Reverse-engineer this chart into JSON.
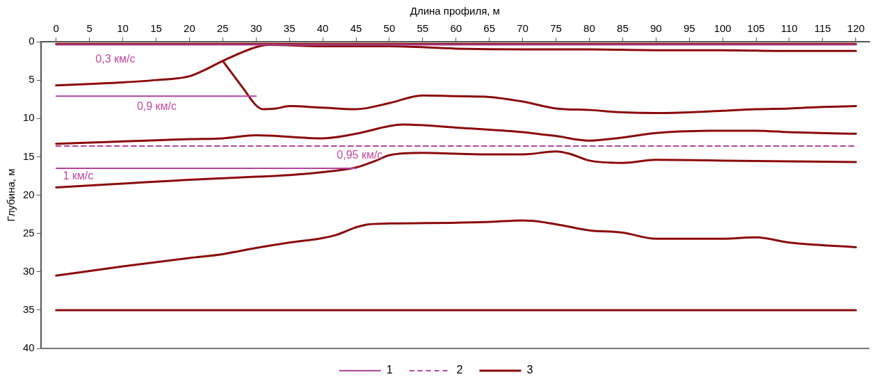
{
  "chart_data": {
    "type": "line",
    "xlabel": "Длина профиля, м",
    "ylabel": "Глубина, м",
    "xlim": [
      -2.3,
      122
    ],
    "xticks": [
      0,
      5,
      10,
      15,
      20,
      25,
      30,
      35,
      40,
      45,
      50,
      55,
      60,
      65,
      70,
      75,
      80,
      85,
      90,
      95,
      100,
      105,
      110,
      115,
      120
    ],
    "ylim": [
      40,
      0
    ],
    "yticks": [
      0,
      5,
      10,
      15,
      20,
      25,
      30,
      35,
      40
    ],
    "grid": false,
    "legend": "bottom",
    "series": [
      {
        "name": "1",
        "color": "#b0449e",
        "x": [
          0,
          120
        ],
        "values": [
          0.4,
          0.4
        ]
      },
      {
        "color": "#b0449e",
        "x": [
          0,
          30
        ],
        "values": [
          7.1,
          7.1
        ]
      },
      {
        "color": "#b0449e",
        "x": [
          0,
          45
        ],
        "values": [
          16.5,
          16.5
        ]
      },
      {
        "name": "2",
        "color": "#b0449e",
        "line_style": "dashed",
        "x": [
          0,
          120
        ],
        "values": [
          13.6,
          13.6
        ]
      },
      {
        "name": "3",
        "color": "#8b0a0a",
        "x": [
          0,
          120
        ],
        "values": [
          0.3,
          0.3
        ]
      },
      {
        "color": "#8b0a0a",
        "x": [
          0,
          5,
          10,
          15,
          20,
          22,
          25,
          30,
          32,
          40,
          50,
          60,
          70,
          80,
          90,
          100,
          110,
          120
        ],
        "values": [
          5.7,
          5.5,
          5.3,
          5.0,
          4.5,
          3.8,
          2.5,
          0.7,
          0.4,
          0.6,
          0.6,
          0.9,
          1.0,
          1.0,
          1.1,
          1.1,
          1.2,
          1.2
        ]
      },
      {
        "color": "#8b0a0a",
        "x": [
          25,
          28,
          30,
          31,
          33,
          35,
          40,
          45,
          50,
          55,
          60,
          65,
          70,
          75,
          80,
          85,
          90,
          95,
          100,
          105,
          110,
          115,
          120
        ],
        "values": [
          2.5,
          6,
          8.3,
          8.8,
          8.7,
          8.4,
          8.6,
          8.8,
          8.0,
          7.0,
          7.1,
          7.2,
          7.8,
          8.7,
          8.9,
          9.2,
          9.3,
          9.2,
          9.0,
          8.8,
          8.7,
          8.5,
          8.4
        ]
      },
      {
        "color": "#8b0a0a",
        "x": [
          0,
          10,
          20,
          25,
          30,
          40,
          45,
          50,
          52,
          60,
          70,
          75,
          80,
          85,
          90,
          100,
          105,
          110,
          120
        ],
        "values": [
          13.3,
          13.0,
          12.7,
          12.6,
          12.2,
          12.6,
          12.0,
          11.0,
          10.8,
          11.2,
          11.8,
          12.3,
          12.9,
          12.5,
          11.9,
          11.6,
          11.6,
          11.8,
          12.0
        ]
      },
      {
        "color": "#8b0a0a",
        "x": [
          0,
          10,
          20,
          30,
          35,
          40,
          45,
          48,
          50,
          55,
          60,
          65,
          70,
          75,
          77,
          80,
          85,
          90,
          100,
          110,
          120
        ],
        "values": [
          19.0,
          18.5,
          18.0,
          17.6,
          17.4,
          17.0,
          16.4,
          15.5,
          14.8,
          14.5,
          14.6,
          14.7,
          14.7,
          14.3,
          14.6,
          15.5,
          15.8,
          15.4,
          15.5,
          15.6,
          15.7
        ]
      },
      {
        "color": "#8b0a0a",
        "x": [
          0,
          10,
          20,
          25,
          30,
          35,
          40,
          42,
          45,
          47,
          50,
          60,
          65,
          70,
          75,
          80,
          85,
          90,
          100,
          105,
          110,
          120
        ],
        "values": [
          30.5,
          29.3,
          28.2,
          27.7,
          26.9,
          26.2,
          25.6,
          25.2,
          24.2,
          23.8,
          23.7,
          23.6,
          23.5,
          23.3,
          23.8,
          24.6,
          24.9,
          25.7,
          25.7,
          25.5,
          26.2,
          26.8
        ]
      },
      {
        "color": "#8b0a0a",
        "x": [
          0,
          120
        ],
        "values": [
          35,
          35
        ]
      }
    ],
    "annotations": [
      "0,3 км/с",
      "0,9 км/с",
      "0,95 км/с",
      "1 км/с"
    ]
  }
}
